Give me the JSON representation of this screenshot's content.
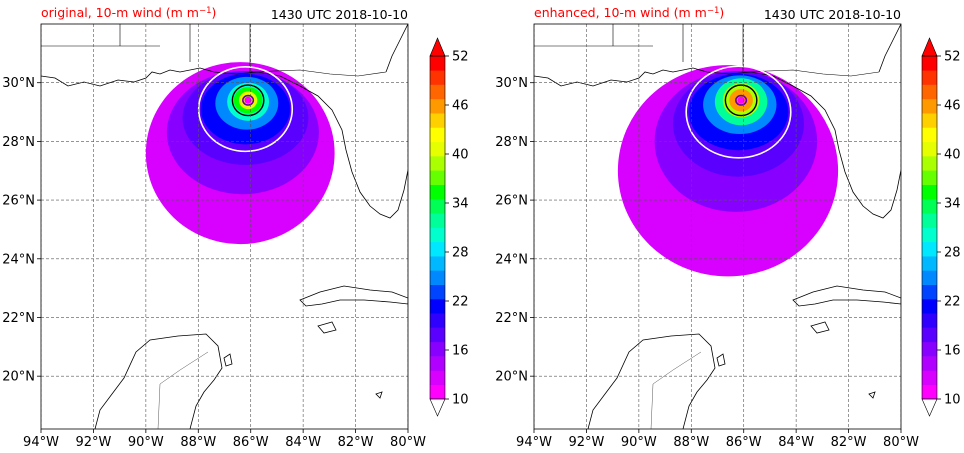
{
  "figure": {
    "panels": [
      {
        "title_left": "original, 10-m wind (m m",
        "title_left_sup": "−1",
        "title_left_close": ")",
        "title_right": "1430 UTC 2018-10-10"
      },
      {
        "title_left": "enhanced, 10-m wind (m m",
        "title_left_sup": "−1",
        "title_left_close": ")",
        "title_right": "1430 UTC 2018-10-10"
      }
    ],
    "colors": {
      "title_left": "#ff0000",
      "land_outline": "#000000",
      "grid": "#555555",
      "contour_white": "#ffffff",
      "contour_black": "#000000",
      "contour_purple": "#6a00a8"
    }
  },
  "chart_data": [
    {
      "type": "heatmap",
      "panel": "original",
      "field": "10-m wind",
      "units": "m m−1",
      "time": "1430 UTC 2018-10-10",
      "xlim": [
        -94,
        -80
      ],
      "ylim": [
        18.2,
        32
      ],
      "x_ticks": [
        -94,
        -92,
        -90,
        -88,
        -86,
        -84,
        -82,
        -80
      ],
      "x_tick_labels": [
        "94°W",
        "92°W",
        "90°W",
        "88°W",
        "86°W",
        "84°W",
        "82°W",
        "80°W"
      ],
      "y_ticks": [
        20,
        22,
        24,
        26,
        28,
        30
      ],
      "y_tick_labels": [
        "20°N",
        "22°N",
        "24°N",
        "26°N",
        "28°N",
        "30°N"
      ],
      "grid": true,
      "storm_center": {
        "lon": -86.1,
        "lat": 29.4
      },
      "wind_field_levels": [
        {
          "value": 12,
          "lon_radius": 3.6,
          "lat_radius": 3.1,
          "center_lon": -86.4,
          "center_lat": 27.6
        },
        {
          "value": 16,
          "lon_radius": 2.9,
          "lat_radius": 2.1,
          "center_lon": -86.3,
          "center_lat": 28.3
        },
        {
          "value": 19,
          "lon_radius": 2.4,
          "lat_radius": 1.6,
          "center_lon": -86.2,
          "center_lat": 28.8
        },
        {
          "value": 22,
          "lon_radius": 1.7,
          "lat_radius": 1.2,
          "center_lon": -86.2,
          "center_lat": 29.1
        },
        {
          "value": 27,
          "lon_radius": 1.2,
          "lat_radius": 0.9,
          "center_lon": -86.15,
          "center_lat": 29.3
        },
        {
          "value": 32,
          "lon_radius": 0.8,
          "lat_radius": 0.65,
          "center_lon": -86.1,
          "center_lat": 29.35
        },
        {
          "value": 38,
          "lon_radius": 0.55,
          "lat_radius": 0.45,
          "center_lon": -86.1,
          "center_lat": 29.4
        },
        {
          "value": 44,
          "lon_radius": 0.35,
          "lat_radius": 0.3,
          "center_lon": -86.1,
          "center_lat": 29.4
        }
      ],
      "eye_value": 10
    },
    {
      "type": "heatmap",
      "panel": "enhanced",
      "field": "10-m wind",
      "units": "m m−1",
      "time": "1430 UTC 2018-10-10",
      "xlim": [
        -94,
        -80
      ],
      "ylim": [
        18.2,
        32
      ],
      "x_ticks": [
        -94,
        -92,
        -90,
        -88,
        -86,
        -84,
        -82,
        -80
      ],
      "x_tick_labels": [
        "94°W",
        "92°W",
        "90°W",
        "88°W",
        "86°W",
        "84°W",
        "82°W",
        "80°W"
      ],
      "y_ticks": [
        20,
        22,
        24,
        26,
        28,
        30
      ],
      "y_tick_labels": [
        "20°N",
        "22°N",
        "24°N",
        "26°N",
        "28°N",
        "30°N"
      ],
      "grid": true,
      "storm_center": {
        "lon": -86.1,
        "lat": 29.4
      },
      "wind_field_levels": [
        {
          "value": 12,
          "lon_radius": 4.2,
          "lat_radius": 3.6,
          "center_lon": -86.6,
          "center_lat": 27.0
        },
        {
          "value": 16,
          "lon_radius": 3.1,
          "lat_radius": 2.4,
          "center_lon": -86.3,
          "center_lat": 28.0
        },
        {
          "value": 19,
          "lon_radius": 2.5,
          "lat_radius": 1.8,
          "center_lon": -86.2,
          "center_lat": 28.6
        },
        {
          "value": 22,
          "lon_radius": 1.9,
          "lat_radius": 1.3,
          "center_lon": -86.2,
          "center_lat": 29.0
        },
        {
          "value": 27,
          "lon_radius": 1.4,
          "lat_radius": 1.0,
          "center_lon": -86.15,
          "center_lat": 29.25
        },
        {
          "value": 34,
          "lon_radius": 1.0,
          "lat_radius": 0.8,
          "center_lon": -86.1,
          "center_lat": 29.35
        },
        {
          "value": 42,
          "lon_radius": 0.7,
          "lat_radius": 0.58,
          "center_lon": -86.1,
          "center_lat": 29.4
        },
        {
          "value": 50,
          "lon_radius": 0.45,
          "lat_radius": 0.38,
          "center_lon": -86.1,
          "center_lat": 29.4
        }
      ],
      "eye_value": 10
    }
  ],
  "colorbar": {
    "min": 10,
    "max": 52,
    "step": 2,
    "tick_values": [
      10,
      16,
      22,
      28,
      34,
      40,
      46,
      52
    ],
    "tick_labels": [
      "10",
      "16",
      "22",
      "28",
      "34",
      "40",
      "46",
      "52"
    ],
    "extend": "both",
    "colors": [
      "#ff00ff",
      "#d800ff",
      "#b000ff",
      "#8800ff",
      "#5a00ff",
      "#3000ff",
      "#0000ff",
      "#0044ff",
      "#0088ff",
      "#00b8ff",
      "#00e8ff",
      "#00ffcc",
      "#00ff99",
      "#00ff55",
      "#00ff00",
      "#66ff00",
      "#aaff00",
      "#e6ff00",
      "#ffff00",
      "#ffd000",
      "#ff9900",
      "#ff6600",
      "#ff3300",
      "#ff0000"
    ],
    "under_color": "#ffffff",
    "over_color": "#ff0000"
  }
}
